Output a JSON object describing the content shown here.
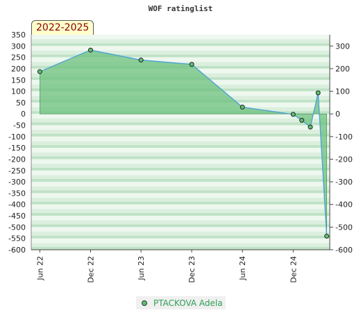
{
  "chart_data": {
    "type": "area",
    "title": "WOF ratinglist",
    "badge": "2022-2025",
    "x_labels": [
      "Jun 22",
      "Dec 22",
      "Jun 23",
      "Dec 23",
      "Jun 24",
      "Dec 24"
    ],
    "y_ticks_left": [
      350,
      300,
      250,
      200,
      150,
      100,
      50,
      0,
      -50,
      -100,
      -150,
      -200,
      -250,
      -300,
      -350,
      -400,
      -450,
      -500,
      -550,
      -600
    ],
    "y_ticks_right": [
      300,
      200,
      100,
      0,
      -100,
      -200,
      -300,
      -400,
      -500,
      -600
    ],
    "ylim": [
      -600,
      350
    ],
    "series": [
      {
        "name": "PTACKOVA Adela",
        "x": [
          "2022-06-01",
          "2022-12-01",
          "2023-06-01",
          "2023-12-01",
          "2024-06-01",
          "2024-12-01",
          "2025-01-01",
          "2025-02-01",
          "2025-03-01",
          "2025-04-01"
        ],
        "values": [
          187,
          282,
          238,
          219,
          30,
          -2,
          -28,
          -58,
          93,
          -540
        ]
      }
    ],
    "colors": {
      "line": "#4aa0d8",
      "area": "#6cc07e",
      "marker": "#5fbf6f"
    },
    "legend_position": "bottom-center",
    "grid": true
  }
}
